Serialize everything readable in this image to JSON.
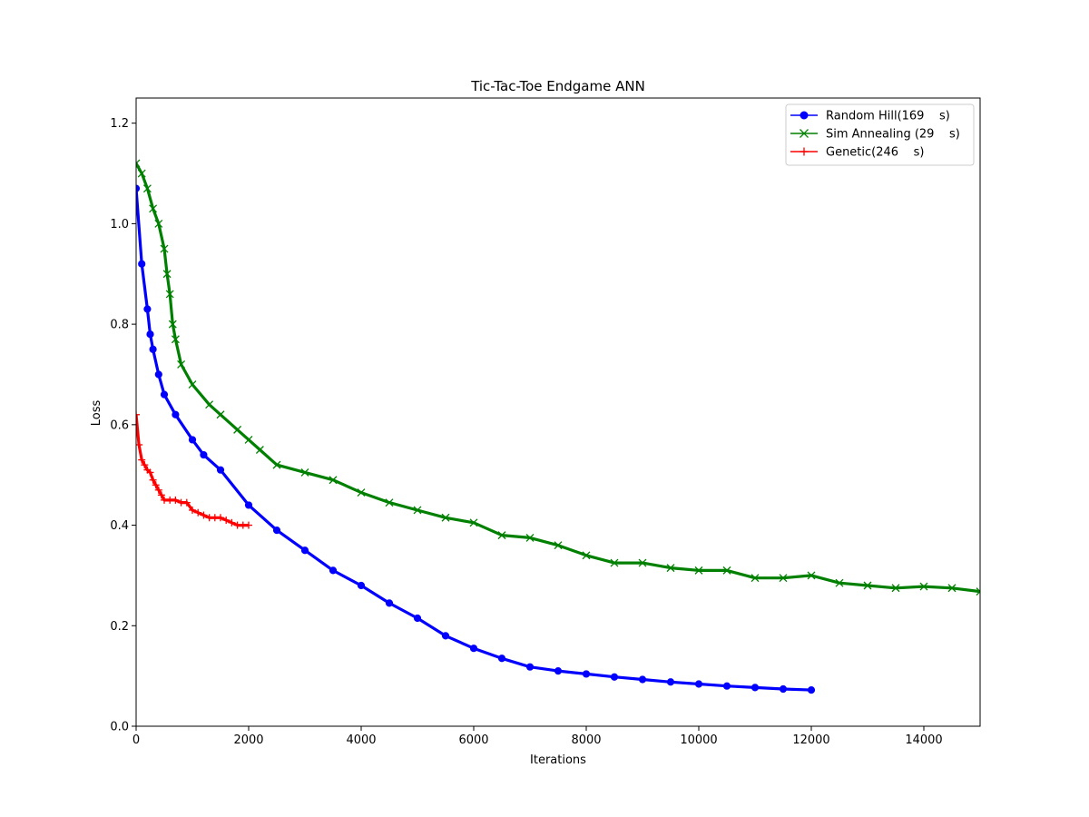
{
  "chart_data": {
    "type": "line",
    "title": "Tic-Tac-Toe Endgame ANN",
    "xlabel": "Iterations",
    "ylabel": "Loss",
    "xlim": [
      0,
      15000
    ],
    "ylim": [
      0,
      1.25
    ],
    "xticks": [
      0,
      2000,
      4000,
      6000,
      8000,
      10000,
      12000,
      14000
    ],
    "xtick_labels": [
      "0",
      "2000",
      "4000",
      "6000",
      "8000",
      "10000",
      "12000",
      "14000"
    ],
    "yticks": [
      0.0,
      0.2,
      0.4,
      0.6,
      0.8,
      1.0,
      1.2
    ],
    "ytick_labels": [
      "0.0",
      "0.2",
      "0.4",
      "0.6",
      "0.8",
      "1.0",
      "1.2"
    ],
    "grid": false,
    "legend_position": "top-right",
    "series": [
      {
        "name": "Random Hill(169    s)",
        "color": "#0000ff",
        "marker": "circle",
        "x": [
          0,
          100,
          200,
          250,
          300,
          400,
          500,
          700,
          1000,
          1200,
          1500,
          2000,
          2500,
          3000,
          3500,
          4000,
          4500,
          5000,
          5500,
          6000,
          6500,
          7000,
          7500,
          8000,
          8500,
          9000,
          9500,
          10000,
          10500,
          11000,
          11500,
          12000
        ],
        "y": [
          1.07,
          0.92,
          0.83,
          0.78,
          0.75,
          0.7,
          0.66,
          0.62,
          0.57,
          0.54,
          0.51,
          0.44,
          0.39,
          0.35,
          0.31,
          0.28,
          0.245,
          0.215,
          0.18,
          0.155,
          0.135,
          0.118,
          0.11,
          0.104,
          0.098,
          0.093,
          0.088,
          0.084,
          0.08,
          0.077,
          0.074,
          0.072
        ]
      },
      {
        "name": "Sim Annealing (29    s)",
        "color": "#008000",
        "marker": "x",
        "x": [
          0,
          100,
          200,
          300,
          400,
          500,
          550,
          600,
          650,
          700,
          800,
          1000,
          1300,
          1500,
          1800,
          2000,
          2200,
          2500,
          3000,
          3500,
          4000,
          4500,
          5000,
          5500,
          6000,
          6500,
          7000,
          7500,
          8000,
          8500,
          9000,
          9500,
          10000,
          10500,
          11000,
          11500,
          12000,
          12500,
          13000,
          13500,
          14000,
          14500,
          15000
        ],
        "y": [
          1.12,
          1.1,
          1.07,
          1.03,
          1.0,
          0.95,
          0.9,
          0.86,
          0.8,
          0.77,
          0.72,
          0.68,
          0.64,
          0.62,
          0.59,
          0.57,
          0.55,
          0.52,
          0.505,
          0.49,
          0.465,
          0.445,
          0.43,
          0.415,
          0.405,
          0.38,
          0.375,
          0.36,
          0.34,
          0.325,
          0.325,
          0.315,
          0.31,
          0.31,
          0.295,
          0.295,
          0.3,
          0.285,
          0.28,
          0.275,
          0.278,
          0.275,
          0.268
        ]
      },
      {
        "name": "Genetic(246    s)",
        "color": "#ff0000",
        "marker": "plus",
        "x": [
          0,
          50,
          100,
          150,
          200,
          250,
          300,
          350,
          400,
          450,
          500,
          600,
          700,
          800,
          900,
          1000,
          1100,
          1200,
          1300,
          1400,
          1500,
          1600,
          1700,
          1800,
          1900,
          2000
        ],
        "y": [
          0.62,
          0.56,
          0.53,
          0.52,
          0.51,
          0.505,
          0.49,
          0.48,
          0.47,
          0.46,
          0.45,
          0.45,
          0.45,
          0.445,
          0.445,
          0.43,
          0.425,
          0.42,
          0.415,
          0.415,
          0.415,
          0.41,
          0.405,
          0.4,
          0.4,
          0.4
        ]
      }
    ]
  }
}
